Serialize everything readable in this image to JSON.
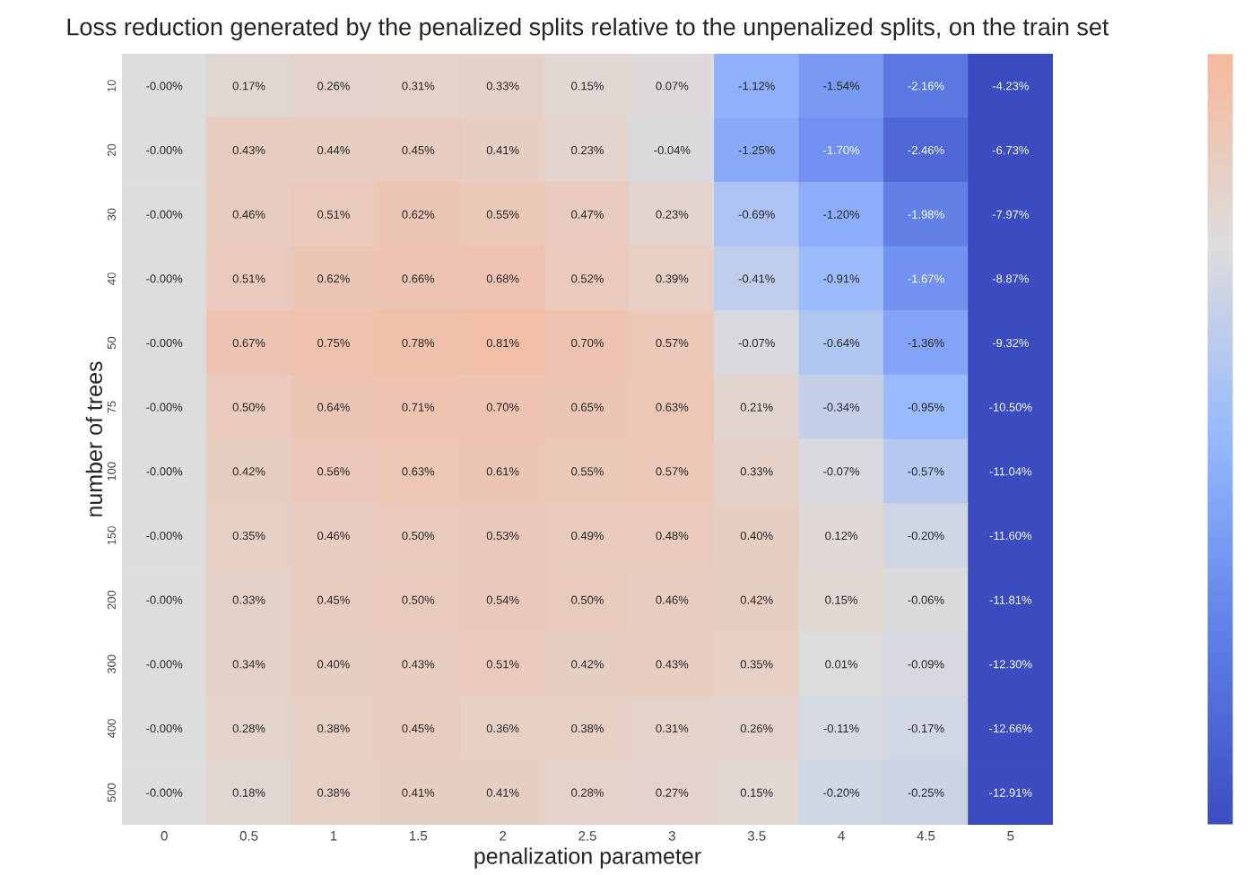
{
  "chart_data": {
    "type": "heatmap",
    "title": "Loss reduction generated by the penalized splits relative to the unpenalized splits, on the train set",
    "xlabel": "penalization parameter",
    "ylabel": "number of trees",
    "categories": [
      "0",
      "0.5",
      "1",
      "1.5",
      "2",
      "2.5",
      "3",
      "3.5",
      "4",
      "4.5",
      "5"
    ],
    "y_categories": [
      "10",
      "20",
      "30",
      "40",
      "50",
      "75",
      "100",
      "150",
      "200",
      "300",
      "400",
      "500"
    ],
    "cells": [
      [
        0,
        0.17,
        0.26,
        0.31,
        0.33,
        0.15,
        0.07,
        -1.12,
        -1.54,
        -2.16,
        -4.23
      ],
      [
        0,
        0.43,
        0.44,
        0.45,
        0.41,
        0.23,
        -0.04,
        -1.25,
        -1.7,
        -2.46,
        -6.73
      ],
      [
        0,
        0.46,
        0.51,
        0.62,
        0.55,
        0.47,
        0.23,
        -0.69,
        -1.2,
        -1.98,
        -7.97
      ],
      [
        0,
        0.51,
        0.62,
        0.66,
        0.68,
        0.52,
        0.39,
        -0.41,
        -0.91,
        -1.67,
        -8.87
      ],
      [
        0,
        0.67,
        0.75,
        0.78,
        0.81,
        0.7,
        0.57,
        -0.07,
        -0.64,
        -1.36,
        -9.32
      ],
      [
        0,
        0.5,
        0.64,
        0.71,
        0.7,
        0.65,
        0.63,
        0.21,
        -0.34,
        -0.95,
        -10.5
      ],
      [
        0,
        0.42,
        0.56,
        0.63,
        0.61,
        0.55,
        0.57,
        0.33,
        -0.07,
        -0.57,
        -11.04
      ],
      [
        0,
        0.35,
        0.46,
        0.5,
        0.53,
        0.49,
        0.48,
        0.4,
        0.12,
        -0.2,
        -11.6
      ],
      [
        0,
        0.33,
        0.45,
        0.5,
        0.54,
        0.5,
        0.46,
        0.42,
        0.15,
        -0.06,
        -11.81
      ],
      [
        0,
        0.34,
        0.4,
        0.43,
        0.51,
        0.42,
        0.43,
        0.35,
        0.01,
        -0.09,
        -12.3
      ],
      [
        0,
        0.28,
        0.38,
        0.45,
        0.36,
        0.38,
        0.31,
        0.26,
        -0.11,
        -0.17,
        -12.66
      ],
      [
        0,
        0.18,
        0.38,
        0.41,
        0.41,
        0.28,
        0.27,
        0.15,
        -0.2,
        -0.25,
        -12.91
      ]
    ],
    "cell_labels": [
      [
        "-0.00%",
        "0.17%",
        "0.26%",
        "0.31%",
        "0.33%",
        "0.15%",
        "0.07%",
        "-1.12%",
        "-1.54%",
        "-2.16%",
        "-4.23%"
      ],
      [
        "-0.00%",
        "0.43%",
        "0.44%",
        "0.45%",
        "0.41%",
        "0.23%",
        "-0.04%",
        "-1.25%",
        "-1.70%",
        "-2.46%",
        "-6.73%"
      ],
      [
        "-0.00%",
        "0.46%",
        "0.51%",
        "0.62%",
        "0.55%",
        "0.47%",
        "0.23%",
        "-0.69%",
        "-1.20%",
        "-1.98%",
        "-7.97%"
      ],
      [
        "-0.00%",
        "0.51%",
        "0.62%",
        "0.66%",
        "0.68%",
        "0.52%",
        "0.39%",
        "-0.41%",
        "-0.91%",
        "-1.67%",
        "-8.87%"
      ],
      [
        "-0.00%",
        "0.67%",
        "0.75%",
        "0.78%",
        "0.81%",
        "0.70%",
        "0.57%",
        "-0.07%",
        "-0.64%",
        "-1.36%",
        "-9.32%"
      ],
      [
        "-0.00%",
        "0.50%",
        "0.64%",
        "0.71%",
        "0.70%",
        "0.65%",
        "0.63%",
        "0.21%",
        "-0.34%",
        "-0.95%",
        "-10.50%"
      ],
      [
        "-0.00%",
        "0.42%",
        "0.56%",
        "0.63%",
        "0.61%",
        "0.55%",
        "0.57%",
        "0.33%",
        "-0.07%",
        "-0.57%",
        "-11.04%"
      ],
      [
        "-0.00%",
        "0.35%",
        "0.46%",
        "0.50%",
        "0.53%",
        "0.49%",
        "0.48%",
        "0.40%",
        "0.12%",
        "-0.20%",
        "-11.60%"
      ],
      [
        "-0.00%",
        "0.33%",
        "0.45%",
        "0.50%",
        "0.54%",
        "0.50%",
        "0.46%",
        "0.42%",
        "0.15%",
        "-0.06%",
        "-11.81%"
      ],
      [
        "-0.00%",
        "0.34%",
        "0.40%",
        "0.43%",
        "0.51%",
        "0.42%",
        "0.43%",
        "0.35%",
        "0.01%",
        "-0.09%",
        "-12.30%"
      ],
      [
        "-0.00%",
        "0.28%",
        "0.38%",
        "0.45%",
        "0.36%",
        "0.38%",
        "0.31%",
        "0.26%",
        "-0.11%",
        "-0.17%",
        "-12.66%"
      ],
      [
        "-0.00%",
        "0.18%",
        "0.38%",
        "0.41%",
        "0.41%",
        "0.28%",
        "0.27%",
        "0.15%",
        "-0.20%",
        "-0.25%",
        "-12.91%"
      ]
    ]
  }
}
